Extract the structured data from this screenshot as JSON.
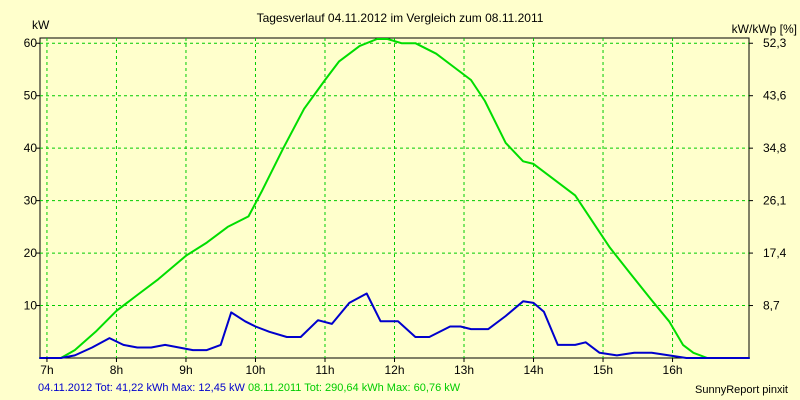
{
  "chart_data": {
    "type": "line",
    "title": "Tagesverlauf 04.11.2012 im Vergleich zum 08.11.2011",
    "ylabel": "kW",
    "y2label": "kW/kWp [%]",
    "ylim": [
      0,
      61
    ],
    "y_ticks": [
      10,
      20,
      30,
      40,
      50,
      60
    ],
    "y2_ticks": [
      "8,7",
      "17,4",
      "26,1",
      "34,8",
      "43,6",
      "52,3"
    ],
    "x_range": [
      6.9,
      17.1
    ],
    "x_ticks": [
      {
        "value": 7,
        "label": "7h"
      },
      {
        "value": 8,
        "label": "8h"
      },
      {
        "value": 9,
        "label": "9h"
      },
      {
        "value": 10,
        "label": "10h"
      },
      {
        "value": 11,
        "label": "11h"
      },
      {
        "value": 12,
        "label": "12h"
      },
      {
        "value": 13,
        "label": "13h"
      },
      {
        "value": 14,
        "label": "14h"
      },
      {
        "value": 15,
        "label": "15h"
      },
      {
        "value": 16,
        "label": "16h"
      }
    ],
    "grid": true,
    "series": [
      {
        "name": "08.11.2011",
        "color": "#00dd00",
        "x": [
          6.9,
          7.2,
          7.4,
          7.7,
          8.0,
          8.3,
          8.6,
          9.0,
          9.3,
          9.6,
          9.9,
          10.1,
          10.4,
          10.7,
          11.0,
          11.2,
          11.5,
          11.75,
          11.9,
          12.1,
          12.3,
          12.6,
          12.9,
          13.1,
          13.3,
          13.6,
          13.85,
          14.0,
          14.2,
          14.4,
          14.6,
          14.9,
          15.1,
          15.4,
          15.7,
          15.95,
          16.15,
          16.3,
          16.5,
          16.8,
          17.1
        ],
        "y": [
          0,
          0,
          1.5,
          5,
          9,
          12,
          15,
          19.5,
          22,
          25,
          27,
          32,
          40,
          47.5,
          53,
          56.5,
          59.5,
          60.8,
          60.8,
          60,
          60,
          58,
          55,
          53,
          49,
          41,
          37.5,
          37,
          35,
          33,
          31,
          25,
          21,
          16,
          11,
          7,
          2.5,
          1,
          0,
          0,
          0
        ]
      },
      {
        "name": "04.11.2012",
        "color": "#0000cc",
        "x": [
          6.9,
          7.2,
          7.4,
          7.65,
          7.9,
          8.1,
          8.3,
          8.5,
          8.7,
          8.9,
          9.1,
          9.3,
          9.5,
          9.65,
          9.85,
          10.0,
          10.2,
          10.45,
          10.65,
          10.9,
          11.1,
          11.35,
          11.6,
          11.8,
          12.05,
          12.3,
          12.5,
          12.8,
          12.95,
          13.1,
          13.35,
          13.6,
          13.85,
          14.0,
          14.15,
          14.35,
          14.6,
          14.75,
          14.95,
          15.2,
          15.45,
          15.7,
          15.95,
          16.2,
          16.45,
          16.7,
          17.1
        ],
        "y": [
          0,
          0,
          0.5,
          2,
          3.8,
          2.5,
          2,
          2,
          2.5,
          2,
          1.5,
          1.5,
          2.5,
          8.7,
          7,
          6,
          5,
          4,
          4,
          7.2,
          6.5,
          10.5,
          12.3,
          7,
          7,
          4,
          4,
          6,
          6,
          5.5,
          5.5,
          8,
          10.8,
          10.5,
          8.8,
          2.5,
          2.5,
          3,
          1,
          0.5,
          1,
          1,
          0.5,
          0,
          0,
          0,
          0
        ]
      }
    ]
  },
  "footer": {
    "series1_label": "04.11.2012 Tot: 41,22 kWh Max: 12,45 kW",
    "series2_label": "08.11.2011 Tot: 290,64 kWh Max: 60,76 kW",
    "credit": "SunnyReport pinxit"
  },
  "colors": {
    "background": "#ffffcc",
    "grid": "#00cc00",
    "axis": "#000000"
  }
}
